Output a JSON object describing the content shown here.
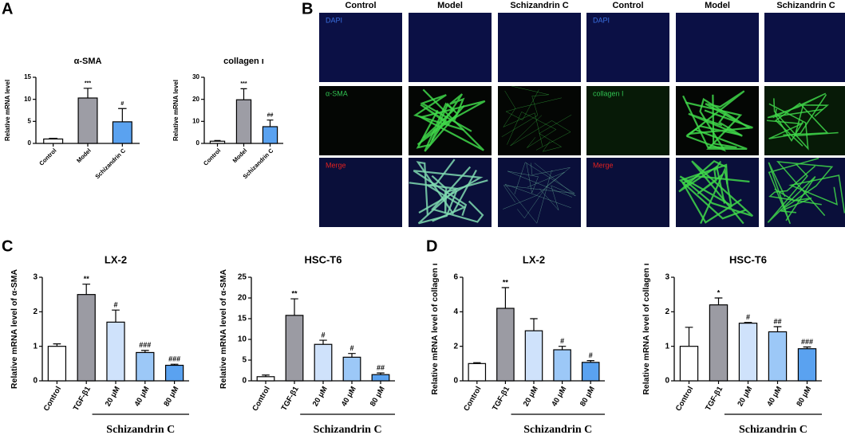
{
  "panel_labels": [
    "A",
    "B",
    "C",
    "D"
  ],
  "micrograph": {
    "columns": [
      "Control",
      "Model",
      "Schizandrin C",
      "Control",
      "Model",
      "Schizandrin C"
    ],
    "left_rows": [
      "DAPI",
      "α-SMA",
      "Merge"
    ],
    "right_rows": [
      "DAPI",
      "collagen I",
      "Merge"
    ]
  },
  "chart_data": [
    {
      "type": "bar",
      "title": "α-SMA",
      "y_label": "Relative mRNA level",
      "categories": [
        "Control",
        "Model",
        "Schizandrin C"
      ],
      "values": [
        1,
        10.3,
        4.9
      ],
      "errors": [
        0.15,
        2.2,
        3.0
      ],
      "annotations": [
        null,
        "***",
        "#"
      ],
      "colors": [
        "#ffffff",
        "#9d9da5",
        "#5aa2f0"
      ],
      "ylim": [
        0,
        15
      ],
      "yticks": [
        0,
        5,
        10,
        15
      ]
    },
    {
      "type": "bar",
      "title": "collagen ı",
      "y_label": "Relative mRNA level",
      "categories": [
        "Control",
        "Model",
        "Schizandrin C"
      ],
      "values": [
        1,
        19.8,
        7.6
      ],
      "errors": [
        0.3,
        5.0,
        3.0
      ],
      "annotations": [
        null,
        "***",
        "##"
      ],
      "colors": [
        "#ffffff",
        "#9d9da5",
        "#5aa2f0"
      ],
      "ylim": [
        0,
        30
      ],
      "yticks": [
        0,
        10,
        20,
        30
      ]
    },
    {
      "type": "bar",
      "title": "LX-2",
      "y_label": "Relative mRNA level of α-SMA",
      "group_label": "Schizandrin C",
      "categories": [
        "Control",
        "TGF-β1",
        "20 μM",
        "40 μM",
        "80 μM"
      ],
      "values": [
        1,
        2.5,
        1.7,
        0.82,
        0.45
      ],
      "errors": [
        0.07,
        0.3,
        0.35,
        0.06,
        0.03
      ],
      "annotations": [
        null,
        "**",
        "#",
        "###",
        "###"
      ],
      "colors": [
        "#ffffff",
        "#9b9ba3",
        "#cfe2fb",
        "#9cc8f7",
        "#5aa2f0"
      ],
      "ylim": [
        0,
        3
      ],
      "yticks": [
        0,
        1,
        2,
        3
      ]
    },
    {
      "type": "bar",
      "title": "HSC-T6",
      "y_label": "Relative mRNA level of α-SMA",
      "group_label": "Schizandrin C",
      "categories": [
        "Control",
        "TGF-β1",
        "20 μM",
        "40 μM",
        "80 μM"
      ],
      "values": [
        1,
        15.8,
        8.8,
        5.7,
        1.5
      ],
      "errors": [
        0.4,
        4.0,
        1.0,
        0.9,
        0.4
      ],
      "annotations": [
        null,
        "**",
        "#",
        "#",
        "##"
      ],
      "colors": [
        "#ffffff",
        "#9b9ba3",
        "#cfe2fb",
        "#9cc8f7",
        "#5aa2f0"
      ],
      "ylim": [
        0,
        25
      ],
      "yticks": [
        0,
        5,
        10,
        15,
        20,
        25
      ]
    },
    {
      "type": "bar",
      "title": "LX-2",
      "y_label": "Relative mRNA level of collagen ı",
      "group_label": "Schizandrin C",
      "categories": [
        "Control",
        "TGF-β1",
        "20 μM",
        "40 μM",
        "80 μM"
      ],
      "values": [
        1,
        4.2,
        2.9,
        1.8,
        1.07
      ],
      "errors": [
        0.05,
        1.2,
        0.7,
        0.2,
        0.1
      ],
      "annotations": [
        null,
        "**",
        null,
        "#",
        "#"
      ],
      "colors": [
        "#ffffff",
        "#9b9ba3",
        "#cfe2fb",
        "#9cc8f7",
        "#5aa2f0"
      ],
      "ylim": [
        0,
        6
      ],
      "yticks": [
        0,
        2,
        4,
        6
      ]
    },
    {
      "type": "bar",
      "title": "HSC-T6",
      "y_label": "Relative mRNA level of collagen ı",
      "group_label": "Schizandrin C",
      "categories": [
        "Control",
        "TGF-β1",
        "20 μM",
        "40 μM",
        "80 μM"
      ],
      "values": [
        1,
        2.2,
        1.67,
        1.42,
        0.93
      ],
      "errors": [
        0.55,
        0.2,
        0.02,
        0.15,
        0.05
      ],
      "annotations": [
        null,
        "*",
        "#",
        "##",
        "###"
      ],
      "colors": [
        "#ffffff",
        "#9b9ba3",
        "#cfe2fb",
        "#9cc8f7",
        "#5aa2f0"
      ],
      "ylim": [
        0,
        3
      ],
      "yticks": [
        0,
        1,
        2,
        3
      ]
    }
  ]
}
